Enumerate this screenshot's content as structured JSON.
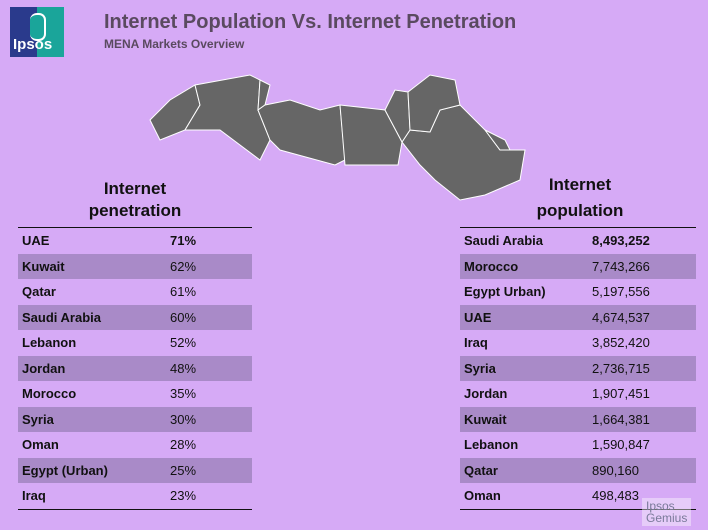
{
  "logo": "Ipsos",
  "title": "Internet Population Vs. Internet Penetration",
  "subtitle": "MENA Markets Overview",
  "penetration": {
    "header_line1": "Internet",
    "header_line2": "penetration",
    "rows": [
      [
        "UAE",
        "71%"
      ],
      [
        "Kuwait",
        "62%"
      ],
      [
        "Qatar",
        "61%"
      ],
      [
        "Saudi Arabia",
        "60%"
      ],
      [
        "Lebanon",
        "52%"
      ],
      [
        "Jordan",
        "48%"
      ],
      [
        "Morocco",
        "35%"
      ],
      [
        "Syria",
        "30%"
      ],
      [
        "Oman",
        "28%"
      ],
      [
        "Egypt (Urban)",
        "25%"
      ],
      [
        "Iraq",
        "23%"
      ]
    ]
  },
  "population": {
    "header_line1": "Internet",
    "header_line2": "population",
    "rows": [
      [
        "Saudi Arabia",
        "8,493,252"
      ],
      [
        "Morocco",
        "7,743,266"
      ],
      [
        "Egypt Urban)",
        "5,197,556"
      ],
      [
        "UAE",
        "4,674,537"
      ],
      [
        "Iraq",
        "3,852,420"
      ],
      [
        "Syria",
        "2,736,715"
      ],
      [
        "Jordan",
        "1,907,451"
      ],
      [
        "Kuwait",
        "1,664,381"
      ],
      [
        "Lebanon",
        "1,590,847"
      ],
      [
        "Qatar",
        "890,160"
      ],
      [
        "Oman",
        "498,483"
      ]
    ]
  },
  "footer_logo": {
    "line1": "Ipsos",
    "line2": "Gemius"
  }
}
